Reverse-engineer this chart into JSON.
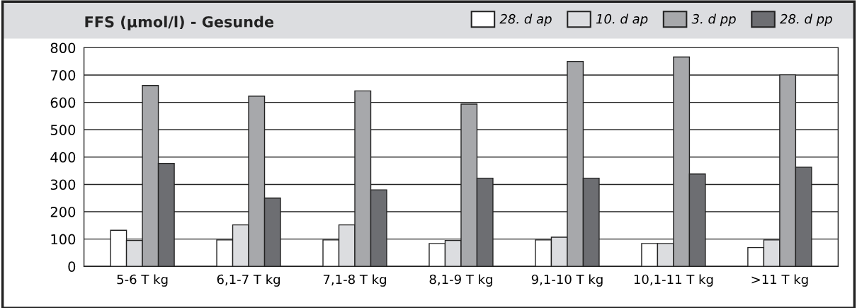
{
  "chart_data": {
    "type": "bar",
    "title": "FFS (µmol/l) - Gesunde",
    "categories": [
      "5-6 T kg",
      "6,1-7 T kg",
      "7,1-8 T kg",
      "8,1-9 T kg",
      "9,1-10 T kg",
      "10,1-11 T kg",
      ">11 T kg"
    ],
    "series": [
      {
        "name": "28. d ap",
        "color": "#ffffff",
        "values": [
          132,
          97,
          97,
          84,
          97,
          84,
          69
        ]
      },
      {
        "name": "10. d ap",
        "color": "#dcdde0",
        "values": [
          95,
          152,
          152,
          95,
          107,
          84,
          97
        ]
      },
      {
        "name": "3. d pp",
        "color": "#a7a8ab",
        "values": [
          662,
          623,
          642,
          594,
          750,
          766,
          701
        ]
      },
      {
        "name": "28. d pp",
        "color": "#6d6e72",
        "values": [
          377,
          250,
          280,
          323,
          323,
          338,
          363
        ]
      }
    ],
    "ylim": [
      0,
      800
    ],
    "yticks": [
      0,
      100,
      200,
      300,
      400,
      500,
      600,
      700,
      800
    ],
    "grid": "y",
    "legend": "top right"
  }
}
